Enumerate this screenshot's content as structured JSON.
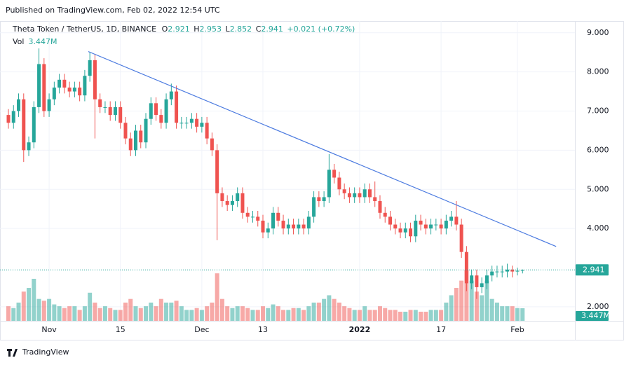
{
  "header": {
    "published": "Published on TradingView.com, Feb 02, 2022 12:54 UTC",
    "logo": "TradingView"
  },
  "chart_data": {
    "type": "candlestick",
    "title": "Theta Token / TetherUS, 1D, BINANCE",
    "ohlc_letters": [
      "O",
      "H",
      "L",
      "C"
    ],
    "change": "+0.021 (+0.72%)",
    "volume_name": "Vol",
    "volume_label": "3.447M",
    "up_color": "#26a69a",
    "down_color": "#ef5350",
    "categories": [
      null,
      null,
      null,
      null,
      null,
      null,
      null,
      null,
      "Nov",
      null,
      null,
      null,
      null,
      null,
      null,
      null,
      null,
      null,
      null,
      null,
      null,
      null,
      "15",
      null,
      null,
      null,
      null,
      null,
      null,
      null,
      null,
      null,
      null,
      null,
      null,
      null,
      null,
      null,
      "Dec",
      null,
      null,
      null,
      null,
      null,
      null,
      null,
      null,
      null,
      null,
      null,
      "13",
      null,
      null,
      null,
      null,
      null,
      null,
      null,
      null,
      null,
      null,
      null,
      null,
      null,
      null,
      null,
      null,
      null,
      null,
      "2022",
      null,
      null,
      null,
      null,
      null,
      null,
      null,
      null,
      null,
      null,
      null,
      null,
      null,
      null,
      null,
      "17",
      null,
      null,
      null,
      null,
      null,
      null,
      null,
      null,
      null,
      null,
      null,
      null,
      null,
      null,
      "Feb",
      null
    ],
    "open": [
      6.9,
      6.7,
      7.0,
      7.3,
      6.0,
      6.2,
      7.1,
      8.2,
      7.0,
      7.3,
      7.6,
      7.8,
      7.6,
      7.5,
      7.6,
      7.4,
      7.9,
      8.3,
      7.3,
      7.1,
      7.1,
      6.9,
      7.1,
      6.7,
      6.3,
      6.0,
      6.5,
      6.2,
      6.8,
      7.2,
      6.9,
      6.7,
      7.3,
      7.5,
      6.7,
      6.7,
      6.7,
      6.8,
      6.6,
      6.7,
      6.3,
      6.0,
      4.9,
      4.7,
      4.6,
      4.7,
      4.9,
      4.4,
      4.3,
      4.3,
      4.2,
      3.9,
      4.0,
      4.4,
      4.2,
      4.0,
      4.1,
      4.0,
      4.1,
      4.0,
      4.3,
      4.8,
      4.7,
      4.8,
      5.5,
      5.3,
      5.0,
      4.9,
      4.8,
      4.9,
      4.8,
      5.0,
      4.8,
      4.7,
      4.4,
      4.3,
      4.1,
      4.0,
      3.9,
      4.0,
      3.8,
      4.2,
      4.1,
      4.0,
      4.1,
      4.1,
      4.0,
      4.2,
      4.3,
      4.1,
      3.4,
      2.6,
      2.8,
      2.5,
      2.6,
      2.8,
      2.9,
      2.9,
      2.9,
      2.95,
      2.9,
      2.921
    ],
    "high": [
      7.05,
      7.15,
      7.45,
      7.45,
      6.35,
      7.25,
      8.6,
      8.35,
      7.45,
      7.75,
      7.95,
      7.95,
      7.75,
      7.75,
      7.75,
      8.05,
      8.5,
      8.45,
      7.45,
      7.25,
      7.25,
      7.25,
      7.25,
      6.85,
      6.45,
      6.65,
      6.65,
      6.95,
      7.35,
      7.35,
      7.05,
      7.45,
      7.7,
      7.65,
      6.85,
      6.85,
      6.95,
      6.95,
      6.85,
      6.85,
      6.45,
      6.15,
      5.05,
      4.85,
      4.85,
      5.05,
      5.05,
      4.55,
      4.45,
      4.45,
      4.35,
      4.15,
      4.55,
      4.55,
      4.35,
      4.25,
      4.25,
      4.25,
      4.25,
      4.45,
      4.95,
      4.95,
      4.95,
      5.9,
      5.65,
      5.45,
      5.15,
      5.05,
      5.05,
      5.05,
      5.15,
      5.15,
      5.2,
      4.85,
      4.55,
      4.45,
      4.25,
      4.15,
      4.15,
      4.15,
      4.35,
      4.35,
      4.25,
      4.25,
      4.25,
      4.25,
      4.35,
      4.45,
      4.7,
      4.25,
      3.55,
      2.95,
      2.95,
      2.75,
      2.95,
      3.05,
      3.05,
      3.05,
      3.1,
      3.05,
      3.0,
      2.953
    ],
    "low": [
      6.55,
      6.55,
      6.85,
      5.7,
      5.85,
      6.05,
      6.95,
      6.85,
      6.85,
      7.15,
      7.45,
      7.45,
      7.35,
      7.35,
      7.25,
      7.25,
      7.75,
      6.3,
      6.95,
      6.95,
      6.75,
      6.75,
      6.55,
      6.15,
      5.85,
      5.85,
      6.05,
      6.05,
      6.65,
      6.75,
      6.55,
      6.55,
      7.15,
      6.55,
      6.55,
      6.55,
      6.55,
      6.45,
      6.45,
      6.15,
      5.85,
      3.7,
      4.55,
      4.45,
      4.45,
      4.55,
      4.25,
      4.15,
      4.15,
      4.05,
      3.75,
      3.75,
      3.85,
      4.05,
      3.85,
      3.85,
      3.85,
      3.85,
      3.85,
      3.85,
      4.15,
      4.55,
      4.55,
      4.65,
      5.15,
      4.85,
      4.75,
      4.65,
      4.65,
      4.65,
      4.65,
      4.65,
      4.55,
      4.25,
      4.15,
      3.95,
      3.85,
      3.75,
      3.75,
      3.65,
      3.65,
      3.95,
      3.85,
      3.85,
      3.95,
      3.85,
      3.85,
      4.05,
      3.95,
      3.25,
      2.4,
      2.45,
      2.2,
      2.35,
      2.45,
      2.65,
      2.75,
      2.75,
      2.75,
      2.75,
      2.8,
      2.852
    ],
    "close": [
      6.7,
      7.0,
      7.3,
      6.0,
      6.2,
      7.1,
      8.2,
      7.0,
      7.3,
      7.6,
      7.8,
      7.6,
      7.5,
      7.6,
      7.4,
      7.9,
      8.3,
      7.3,
      7.1,
      7.1,
      6.9,
      7.1,
      6.7,
      6.3,
      6.0,
      6.5,
      6.2,
      6.8,
      7.2,
      6.9,
      6.7,
      7.3,
      7.5,
      6.7,
      6.7,
      6.7,
      6.8,
      6.6,
      6.7,
      6.3,
      6.0,
      4.9,
      4.7,
      4.6,
      4.7,
      4.9,
      4.4,
      4.3,
      4.3,
      4.2,
      3.9,
      4.0,
      4.4,
      4.2,
      4.0,
      4.1,
      4.0,
      4.1,
      4.0,
      4.3,
      4.8,
      4.7,
      4.8,
      5.5,
      5.3,
      5.0,
      4.9,
      4.8,
      4.9,
      4.8,
      5.0,
      4.8,
      4.7,
      4.4,
      4.3,
      4.1,
      4.0,
      3.9,
      4.0,
      3.8,
      4.2,
      4.1,
      4.0,
      4.1,
      4.1,
      4.0,
      4.2,
      4.3,
      4.1,
      3.4,
      2.6,
      2.8,
      2.5,
      2.6,
      2.8,
      2.9,
      2.9,
      2.9,
      2.95,
      2.9,
      2.921,
      2.941
    ],
    "volume": [
      4,
      3.5,
      5,
      8,
      9,
      11.5,
      6,
      5.5,
      6,
      4.5,
      4,
      3.5,
      4,
      4,
      3,
      4,
      7.7,
      5,
      3.5,
      4,
      3.5,
      3,
      3,
      5,
      6,
      4,
      3.5,
      4,
      5,
      4,
      6,
      5,
      5,
      5.5,
      4,
      3,
      3,
      3.5,
      3,
      4,
      5,
      13,
      6,
      4,
      3.5,
      4,
      4,
      3.5,
      3,
      3,
      4,
      3.5,
      4.5,
      4,
      3,
      3,
      3.5,
      3.5,
      3,
      4,
      5,
      5,
      6,
      7,
      6,
      5,
      4,
      3.5,
      3,
      3,
      4,
      3,
      3,
      4,
      3.5,
      3,
      3,
      2.5,
      2.5,
      3,
      3,
      2.5,
      2.5,
      3,
      3,
      3,
      5,
      7,
      9,
      11,
      14,
      11,
      8,
      7,
      11,
      6,
      5,
      4,
      4,
      4,
      3.5,
      3.447
    ],
    "ylim": [
      1.64,
      9.3
    ],
    "yticks": [
      {
        "value": 2,
        "label": "2.000"
      },
      {
        "value": 4,
        "label": "4.000"
      },
      {
        "value": 5,
        "label": "5.000"
      },
      {
        "value": 6,
        "label": "6.000"
      },
      {
        "value": 7,
        "label": "7.000"
      },
      {
        "value": 8,
        "label": "8.000"
      },
      {
        "value": 9,
        "label": "9.000"
      }
    ],
    "volume_ylim": [
      0,
      82
    ],
    "trendline": {
      "x": [
        15.7,
        107.6
      ],
      "y": [
        8.52,
        3.54
      ],
      "color": "#4c7be0"
    },
    "grid": true
  }
}
